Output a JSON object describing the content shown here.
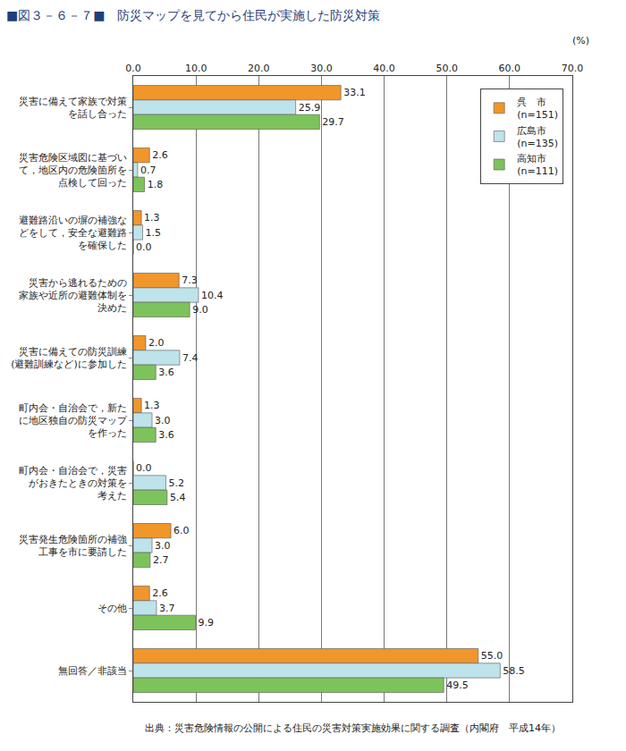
{
  "chart_data": {
    "type": "bar",
    "orientation": "horizontal",
    "title": "■図３－６－７■　防災マップを見てから住民が実施した防災対策",
    "x_label": "(%)",
    "annotations": [
      "出典：災害危険情報の公開による住民の災害対策実施効果に関する調査（内閣府　平成14年）"
    ],
    "categories": [
      "災害に備えて家族で対策\nを話し合った",
      "災害危険区域図に基づい\nて，地区内の危険箇所を\n点検して回った",
      "避難路沿いの塀の補強な\nどをして，安全な避難路\nを確保した",
      "災害から逃れるための\n家族や近所の避難体制を\n決めた",
      "災害に備えての防災訓練\n(避難訓練など)に参加した",
      "町内会・自治会で，新た\nに地区独自の防災マップ\nを作った",
      "町内会・自治会で，災害\nがおきたときの対策を\n考えた",
      "災害発生危険箇所の補強\n工事を市に要請した",
      "その他",
      "無回答／非該当"
    ],
    "series": [
      {
        "name": "呉　市\n(n=151)",
        "color": "#f0962a",
        "values": [
          33.1,
          2.6,
          1.3,
          7.3,
          2.0,
          1.3,
          0.0,
          6.0,
          2.6,
          55.0
        ],
        "value_labels": [
          "33.1",
          "2.6",
          "1.3",
          "7.3",
          "2.0",
          "1.3",
          "0.0",
          "6.0",
          "2.6",
          "55.0"
        ]
      },
      {
        "name": "広島市\n(n=135)",
        "color": "#bfe3ea",
        "values": [
          25.9,
          0.7,
          1.5,
          10.4,
          7.4,
          3.0,
          5.2,
          3.0,
          3.7,
          58.5
        ],
        "value_labels": [
          "25.9",
          "0.7",
          "1.5",
          "10.4",
          "7.4",
          "3.0",
          "5.2",
          "3.0",
          "3.7",
          "58.5"
        ]
      },
      {
        "name": "高知市\n(n=111)",
        "color": "#7dc35b",
        "values": [
          29.7,
          1.8,
          0.0,
          9.0,
          3.6,
          3.6,
          5.4,
          2.7,
          9.9,
          49.5
        ],
        "value_labels": [
          "29.7",
          "1.8",
          "0.0",
          "9.0",
          "3.6",
          "3.6",
          "5.4",
          "2.7",
          "9.9",
          "49.5"
        ]
      }
    ],
    "xlim": [
      0,
      70
    ],
    "xticks": [
      {
        "value": 0,
        "label": "0.0"
      },
      {
        "value": 10,
        "label": "10.0"
      },
      {
        "value": 20,
        "label": "20.0"
      },
      {
        "value": 30,
        "label": "30.0"
      },
      {
        "value": 40,
        "label": "40.0"
      },
      {
        "value": 50,
        "label": "50.0"
      },
      {
        "value": 60,
        "label": "60.0"
      },
      {
        "value": 70,
        "label": "70.0"
      }
    ],
    "grid": true,
    "legend": "top right",
    "data_labels": true
  }
}
